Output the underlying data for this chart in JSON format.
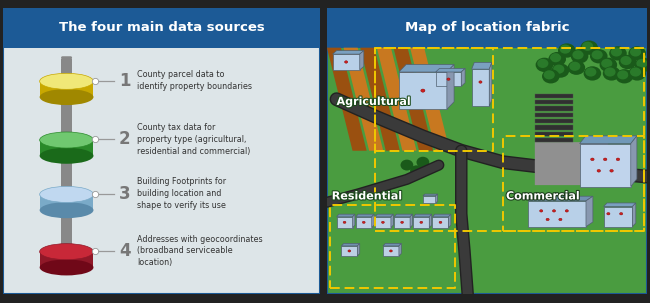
{
  "title_left": "The four main data sources",
  "title_right": "Map of location fabric",
  "title_bg": "#1c5a96",
  "title_color": "#ffffff",
  "left_bg": "#dde5e8",
  "border_color": "#1c5a96",
  "items": [
    {
      "number": "1",
      "text": "County parcel data to\nidentify property boundaries",
      "disk_top": "#f0e878",
      "disk_side": "#c8a800",
      "disk_bot": "#a08800"
    },
    {
      "number": "2",
      "text": "County tax data for\nproperty type (agricultural,\nresidential and commercial)",
      "disk_top": "#70c870",
      "disk_side": "#2a8a2a",
      "disk_bot": "#1a6a1a"
    },
    {
      "number": "3",
      "text": "Building Footprints for\nbuilding location and\nshape to verify its use",
      "disk_top": "#c0d8f0",
      "disk_side": "#7aaac8",
      "disk_bot": "#5a8aaa"
    },
    {
      "number": "4",
      "text": "Addresses with geocoordinates\n(broadband serviceable\nlocation)",
      "disk_top": "#c82838",
      "disk_side": "#901828",
      "disk_bot": "#700818"
    }
  ],
  "connector_color": "#888888",
  "arrow_color": "#888888",
  "text_color": "#333333",
  "green_map_bg": "#3d8c3d",
  "green_map_bg2": "#4a9c4a",
  "field_dark": "#7a4010",
  "field_light": "#c87820",
  "road_color": "#3a3a3a",
  "building_face": "#b8d0e8",
  "building_roof": "#7090b0",
  "building_side": "#8090a8",
  "red_dot": "#cc2020",
  "parcel_yellow": "#f0c800",
  "tree_dark": "#1a5a1a",
  "tree_mid": "#2a7a2a",
  "tree_light": "#3a9a3a",
  "parking_gray": "#505050",
  "parking_line": "#686868",
  "gray_flat": "#909090"
}
